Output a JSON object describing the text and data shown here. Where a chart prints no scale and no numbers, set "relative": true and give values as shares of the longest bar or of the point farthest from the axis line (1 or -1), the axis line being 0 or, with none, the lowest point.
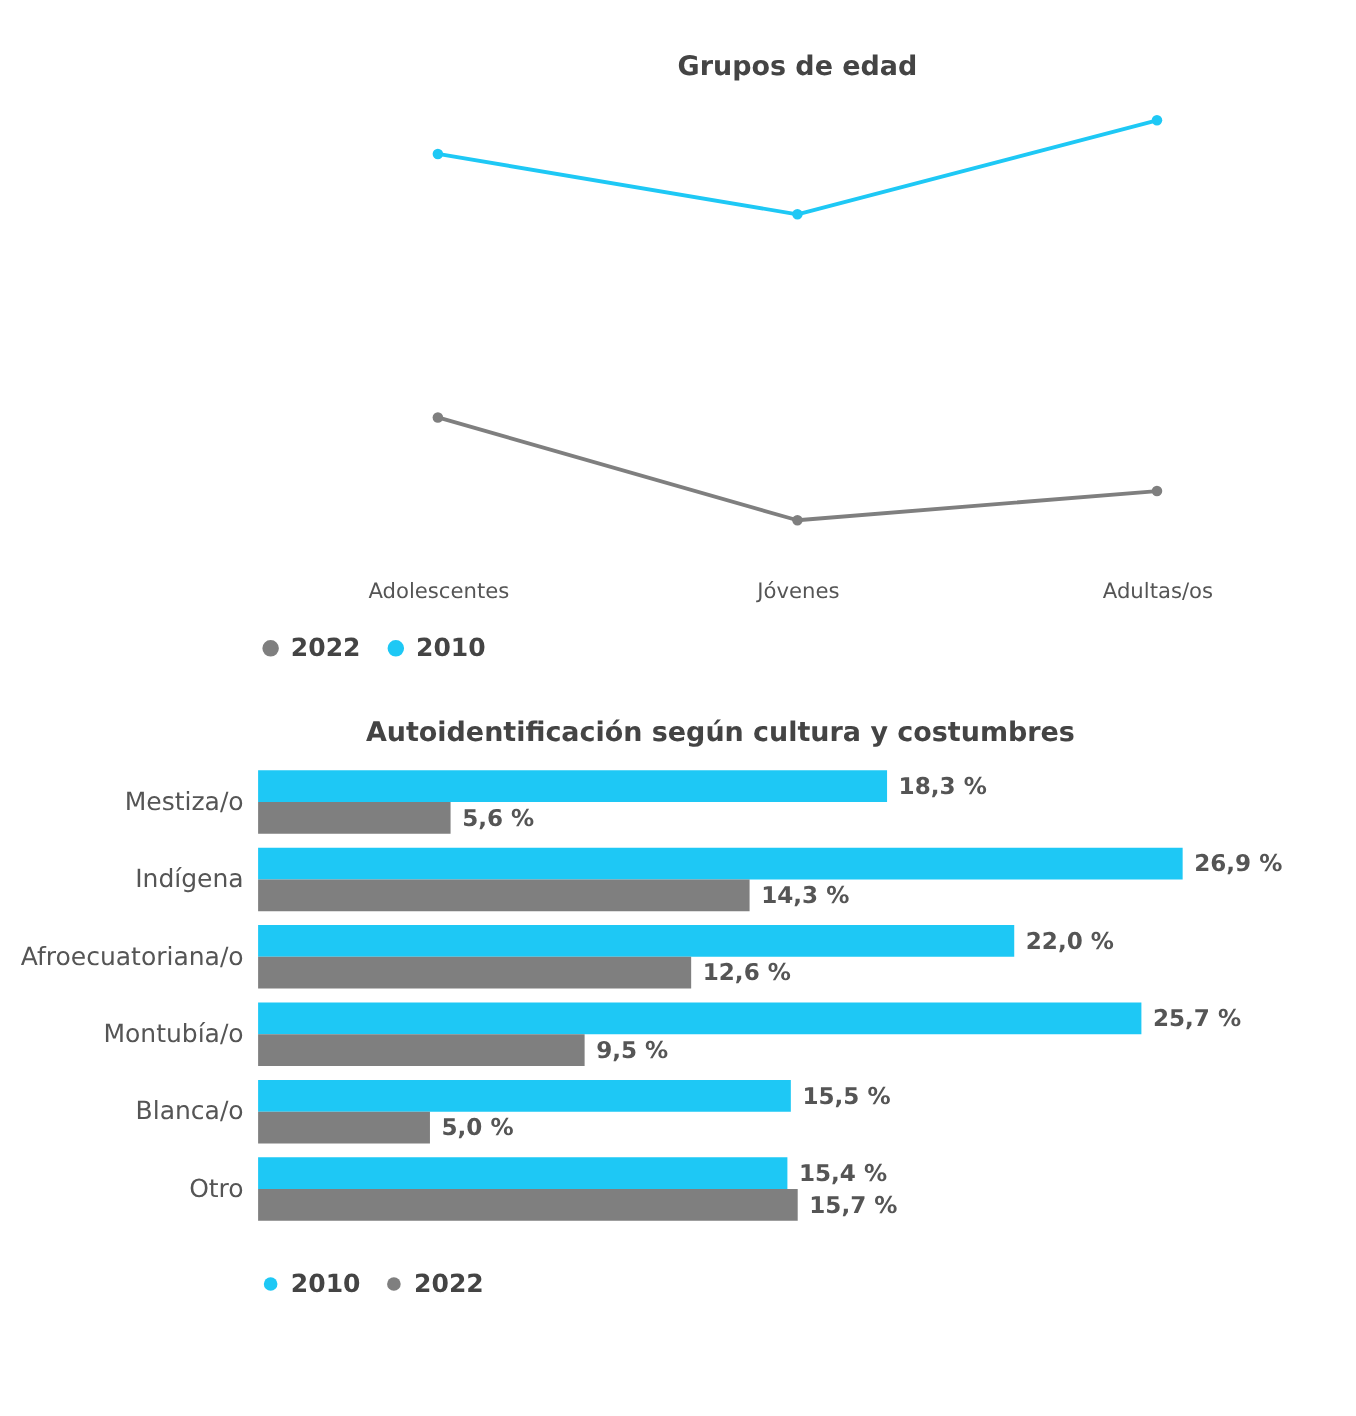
{
  "chart_data": [
    {
      "type": "line",
      "title": "Grupos de edad",
      "relative": true,
      "categories": [
        "Adolescentes",
        "Jóvenes",
        "Adultas/os"
      ],
      "marker": "circle",
      "legend": "bottom",
      "grid": false,
      "series": [
        {
          "name": "2022",
          "color": "#7f7f7f",
          "values": [
            0.257,
            0,
            0.073
          ]
        },
        {
          "name": "2010",
          "color": "#1ec8f5",
          "values": [
            0.916,
            0.765,
            1
          ]
        }
      ]
    },
    {
      "type": "bar",
      "orientation": "horizontal",
      "title": "Autoidentificación según cultura y costumbres",
      "categories": [
        "Mestiza/o",
        "Indígena",
        "Afroecuatoriana/o",
        "Montubía/o",
        "Blanca/o",
        "Otro"
      ],
      "legend": "bottom",
      "grid": false,
      "series": [
        {
          "name": "2010",
          "color": "#1ec8f5",
          "values": [
            18.3,
            26.9,
            22.0,
            25.7,
            15.5,
            15.4
          ],
          "value_labels": [
            "18,3 %",
            "26,9 %",
            "22,0 %",
            "25,7 %",
            "15,5 %",
            "15,4 %"
          ]
        },
        {
          "name": "2022",
          "color": "#7f7f7f",
          "values": [
            5.6,
            14.3,
            12.6,
            9.5,
            5.0,
            15.7
          ],
          "value_labels": [
            "5,6 %",
            "14,3 %",
            "12,6 %",
            "9,5 %",
            "5,0 %",
            "15,7 %"
          ]
        }
      ]
    }
  ]
}
